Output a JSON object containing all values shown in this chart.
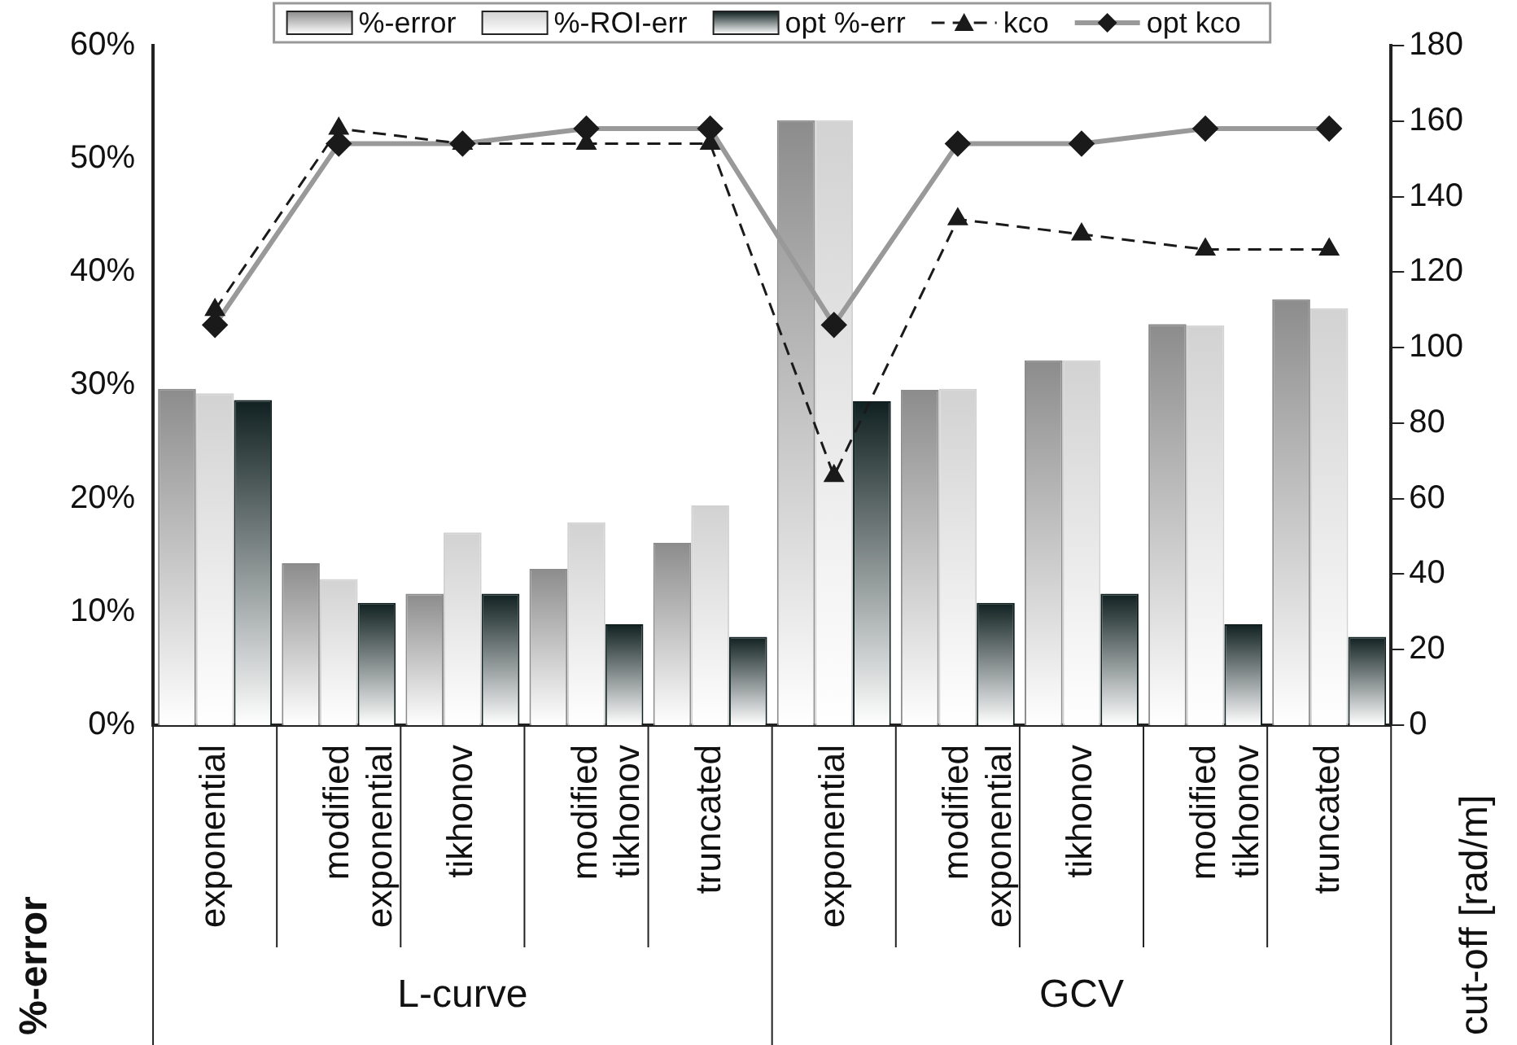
{
  "chart_data": {
    "type": "bar",
    "xlabel": null,
    "ylabel": "%-error",
    "y2label": "cut-off [rad/m]",
    "categories": [
      "exponential",
      "modified exponential",
      "tikhonov",
      "modified tikhonov",
      "truncated",
      "exponential",
      "modified exponential",
      "tikhonov",
      "modified tikhonov",
      "truncated"
    ],
    "annotations": [
      "L-curve",
      "GCV"
    ],
    "series": [
      {
        "name": "%-error",
        "color": "#8c8c8c",
        "values": [
          29.7,
          14.3,
          11.6,
          13.8,
          16.1,
          53.4,
          29.6,
          32.2,
          35.4,
          37.6
        ]
      },
      {
        "name": "%-ROI-err",
        "color": "#d2d2d2",
        "values": [
          29.3,
          12.9,
          17.0,
          17.9,
          19.4,
          53.4,
          29.7,
          32.2,
          35.3,
          36.8
        ]
      },
      {
        "name": "opt %-err",
        "color": "#102020",
        "values": [
          28.7,
          10.8,
          11.6,
          8.9,
          7.8,
          28.6,
          10.8,
          11.6,
          8.9,
          7.8
        ]
      },
      {
        "name": "kco",
        "type": "line",
        "axis": "y2",
        "color": "#1a1a1a",
        "marker": "triangle",
        "line_style": "dashed",
        "values": [
          110,
          158,
          154,
          154,
          154,
          66,
          134,
          130,
          126,
          126
        ]
      },
      {
        "name": "opt kco",
        "type": "line",
        "axis": "y2",
        "color": "#999999",
        "marker": "diamond",
        "line_style": "solid",
        "values": [
          106,
          154,
          154,
          158,
          158,
          106,
          154,
          154,
          158,
          158
        ]
      }
    ],
    "ylim": [
      0,
      60
    ],
    "yticks": [
      {
        "value": 0,
        "label": "0%"
      },
      {
        "value": 10,
        "label": "10%"
      },
      {
        "value": 20,
        "label": "20%"
      },
      {
        "value": 30,
        "label": "30%"
      },
      {
        "value": 40,
        "label": "40%"
      },
      {
        "value": 50,
        "label": "50%"
      },
      {
        "value": 60,
        "label": "60%"
      }
    ],
    "y2lim": [
      0,
      180
    ],
    "y2ticks": [
      0,
      20,
      40,
      60,
      80,
      100,
      120,
      140,
      160,
      180
    ],
    "legend": "top",
    "grid": false
  }
}
